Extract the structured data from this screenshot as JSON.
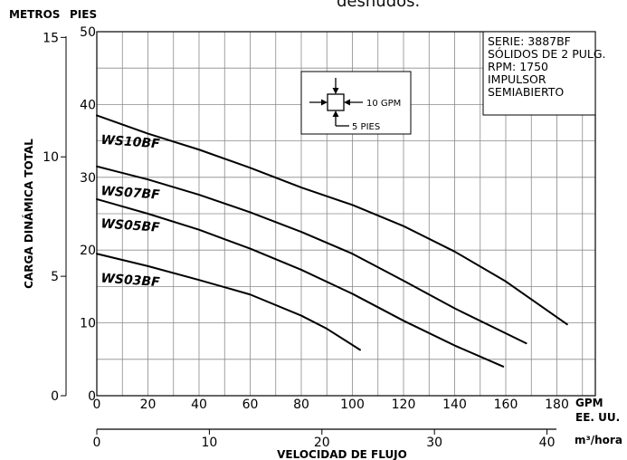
{
  "top_fragment": "desnudos.",
  "chart_data": {
    "type": "line",
    "xlabel": "VELOCIDAD DE FLUJO",
    "ylabel": "CARGA DINÁMICA TOTAL",
    "left_axis_title": "METROS",
    "right_axis_title": "PIES",
    "x_unit_gpm": "GPM",
    "x_unit_gpm_sub": "EE. UU.",
    "x_unit_m3": "m³/hora",
    "xlim_gpm": [
      0,
      195
    ],
    "ylim_feet": [
      0,
      50
    ],
    "x_ticks_gpm": [
      "0",
      "20",
      "40",
      "60",
      "80",
      "100",
      "120",
      "140",
      "160",
      "180"
    ],
    "x_ticks_m3": [
      "0",
      "10",
      "20",
      "30",
      "40"
    ],
    "y_ticks_feet": [
      "0",
      "10",
      "20",
      "30",
      "40",
      "50"
    ],
    "y_ticks_meters": [
      "0",
      "5",
      "10",
      "15"
    ],
    "series": [
      {
        "name": "WS10BF",
        "points": [
          [
            0,
            38.5
          ],
          [
            20,
            36.0
          ],
          [
            40,
            33.8
          ],
          [
            60,
            31.3
          ],
          [
            80,
            28.6
          ],
          [
            100,
            26.2
          ],
          [
            120,
            23.3
          ],
          [
            140,
            19.8
          ],
          [
            160,
            15.7
          ],
          [
            184,
            9.8
          ]
        ]
      },
      {
        "name": "WS07BF",
        "points": [
          [
            0,
            31.5
          ],
          [
            20,
            29.7
          ],
          [
            40,
            27.6
          ],
          [
            60,
            25.2
          ],
          [
            80,
            22.5
          ],
          [
            100,
            19.5
          ],
          [
            120,
            15.8
          ],
          [
            140,
            12.0
          ],
          [
            168,
            7.2
          ]
        ]
      },
      {
        "name": "WS05BF",
        "points": [
          [
            0,
            27.0
          ],
          [
            20,
            25.0
          ],
          [
            40,
            22.8
          ],
          [
            60,
            20.2
          ],
          [
            80,
            17.3
          ],
          [
            100,
            14.0
          ],
          [
            120,
            10.3
          ],
          [
            140,
            6.9
          ],
          [
            159,
            4.0
          ]
        ]
      },
      {
        "name": "WS03BF",
        "points": [
          [
            0,
            19.5
          ],
          [
            20,
            17.8
          ],
          [
            40,
            15.9
          ],
          [
            60,
            13.9
          ],
          [
            80,
            11.0
          ],
          [
            90,
            9.2
          ],
          [
            103,
            6.3
          ]
        ]
      }
    ],
    "info_box": [
      "SERIE: 3887BF",
      "SÓLIDOS DE 2 PULG.",
      "RPM: 1750",
      "IMPULSOR",
      "SEMIABIERTO"
    ],
    "legend_box": {
      "flow_label": "10 GPM",
      "head_label": "5 PIES"
    },
    "grid": true
  }
}
